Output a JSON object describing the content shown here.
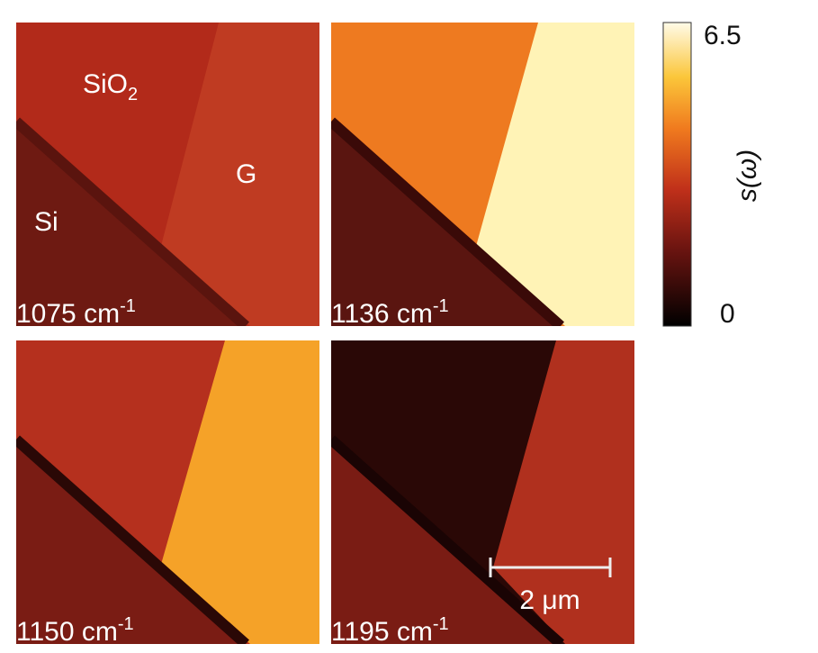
{
  "panels": [
    {
      "label": "1075 cm",
      "label_sup": "-1"
    },
    {
      "label": "1136 cm",
      "label_sup": "-1"
    },
    {
      "label": "1150 cm",
      "label_sup": "-1"
    },
    {
      "label": "1195 cm",
      "label_sup": "-1"
    }
  ],
  "regions": {
    "sio2": "SiO",
    "sio2_sub": "2",
    "graphene": "G",
    "silicon": "Si"
  },
  "scale_bar": {
    "label": "2 μm"
  },
  "colorbar": {
    "label": "s(ω)",
    "min": 0,
    "max": 6.5
  }
}
